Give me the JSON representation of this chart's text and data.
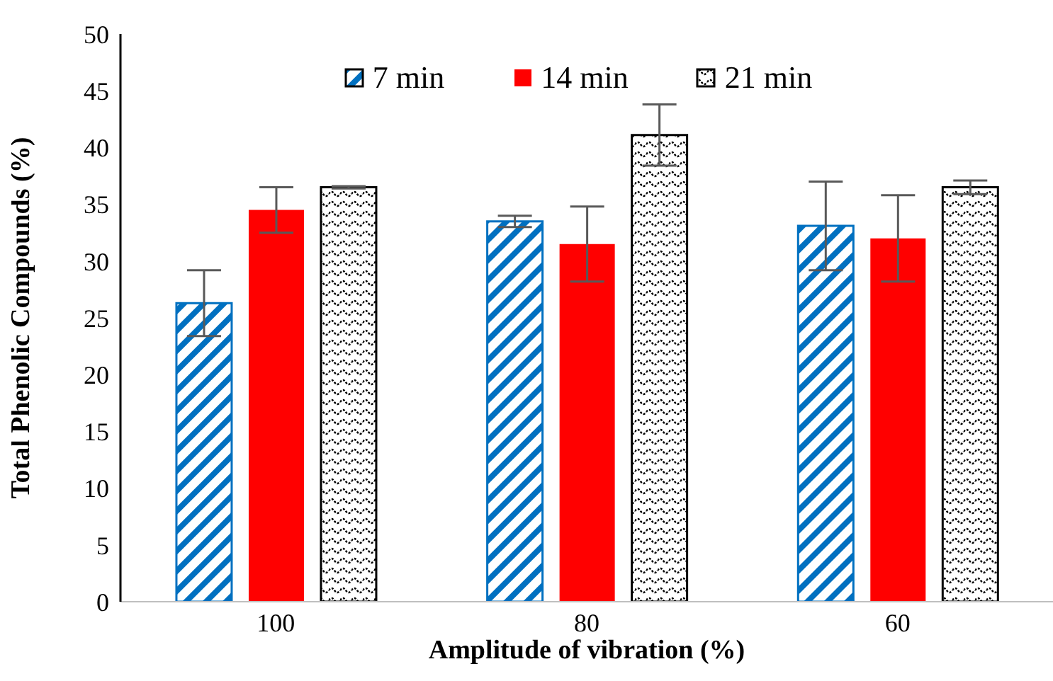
{
  "chart_data": {
    "type": "bar",
    "xlabel": "Amplitude of vibration (%)",
    "ylabel": "Total Phenolic Compounds (%)",
    "categories": [
      "100",
      "80",
      "60"
    ],
    "series": [
      {
        "name": "7 min",
        "color": "#0070c0",
        "values": [
          26.3,
          33.5,
          33.1
        ],
        "errors": [
          2.9,
          0.5,
          3.9
        ]
      },
      {
        "name": "14 min",
        "color": "#ff0000",
        "values": [
          34.5,
          31.5,
          32.0
        ],
        "errors": [
          2.0,
          3.3,
          3.8
        ]
      },
      {
        "name": "21 min",
        "color": "#000000",
        "values": [
          36.5,
          41.1,
          36.5
        ],
        "errors": [
          0.1,
          2.7,
          0.6
        ]
      }
    ],
    "ylim": [
      0,
      50
    ],
    "yticks": [
      0,
      5,
      10,
      15,
      20,
      25,
      30,
      35,
      40,
      45,
      50
    ],
    "grid": false,
    "legend": "top"
  }
}
